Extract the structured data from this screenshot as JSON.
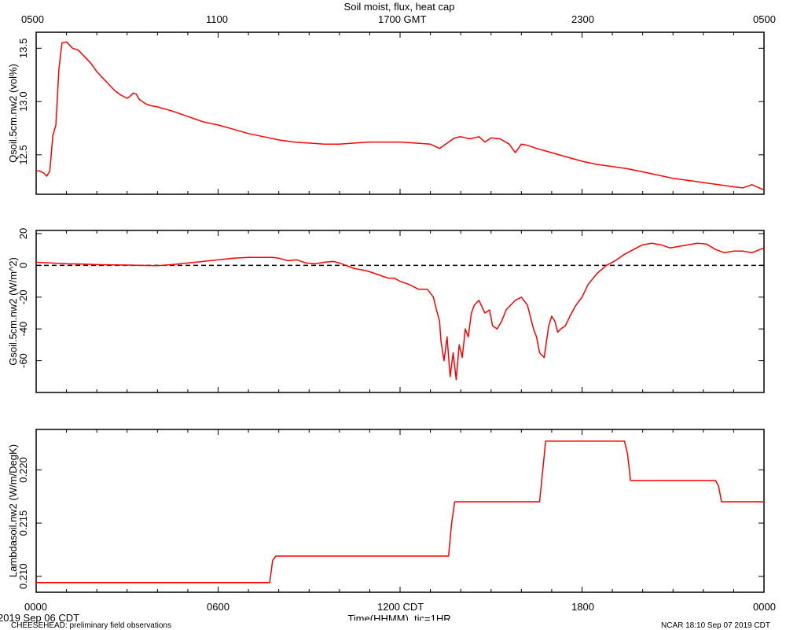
{
  "page": {
    "title": "Soil moist, flux, heat cap",
    "top_axis_ticks": [
      "0500",
      "1100",
      "1700 GMT",
      "2300",
      "0500"
    ],
    "bottom_axis_ticks": [
      "0000",
      "0600",
      "1200 CDT",
      "1800",
      "0000"
    ],
    "xlabel": "Time(HHMM), tic=1HR",
    "date_label": "2019 Sep 06 CDT",
    "footer_left": "CHEESEHEAD: preliminary field observations",
    "footer_right": "NCAR 18:10 Sep 07 2019 CDT",
    "line_color": "#ff0000",
    "zero_line_color": "#000000"
  },
  "chart_data": [
    {
      "type": "line",
      "ylabel": "Qsoil.5cm.nw2 (vol%)",
      "xlim": [
        0,
        24
      ],
      "ylim": [
        12.13,
        13.65
      ],
      "y_ticks": [
        "12.5",
        "13.0",
        "13.5"
      ],
      "y_tick_values": [
        12.5,
        13.0,
        13.5
      ],
      "grid": false,
      "x": [
        0.0,
        0.1,
        0.25,
        0.35,
        0.45,
        0.55,
        0.65,
        0.75,
        0.85,
        1.0,
        1.2,
        1.4,
        1.6,
        1.8,
        2.0,
        2.2,
        2.4,
        2.6,
        2.8,
        3.0,
        3.1,
        3.2,
        3.3,
        3.4,
        3.6,
        3.8,
        4.0,
        4.5,
        5.0,
        5.5,
        6.0,
        6.5,
        7.0,
        7.5,
        8.0,
        8.5,
        9.0,
        9.5,
        10.0,
        10.5,
        11.0,
        11.5,
        12.0,
        12.5,
        13.0,
        13.3,
        13.5,
        13.7,
        13.8,
        14.0,
        14.3,
        14.6,
        14.8,
        15.0,
        15.3,
        15.6,
        15.8,
        16.0,
        16.2,
        16.5,
        17.0,
        17.5,
        18.0,
        18.5,
        19.0,
        19.5,
        20.0,
        20.5,
        21.0,
        21.5,
        22.0,
        22.5,
        23.0,
        23.3,
        23.6,
        24.0
      ],
      "y": [
        12.35,
        12.35,
        12.33,
        12.3,
        12.35,
        12.68,
        12.78,
        13.3,
        13.55,
        13.56,
        13.5,
        13.48,
        13.42,
        13.36,
        13.28,
        13.22,
        13.16,
        13.1,
        13.06,
        13.03,
        13.05,
        13.08,
        13.07,
        13.02,
        12.98,
        12.96,
        12.95,
        12.91,
        12.86,
        12.81,
        12.78,
        12.74,
        12.7,
        12.67,
        12.64,
        12.62,
        12.61,
        12.6,
        12.6,
        12.61,
        12.62,
        12.62,
        12.62,
        12.61,
        12.6,
        12.56,
        12.6,
        12.64,
        12.66,
        12.67,
        12.65,
        12.67,
        12.62,
        12.66,
        12.65,
        12.6,
        12.52,
        12.6,
        12.59,
        12.56,
        12.52,
        12.48,
        12.44,
        12.41,
        12.39,
        12.37,
        12.34,
        12.31,
        12.28,
        12.26,
        12.24,
        12.22,
        12.2,
        12.19,
        12.22,
        12.17
      ]
    },
    {
      "type": "line",
      "ylabel": "Gsoil.5cm.nw2 (W/m^2)",
      "xlim": [
        0,
        24
      ],
      "ylim": [
        -80,
        22
      ],
      "y_ticks": [
        "-60",
        "-40",
        "-20",
        "0",
        "20"
      ],
      "y_tick_values": [
        -60,
        -40,
        -20,
        0,
        20
      ],
      "reference_line": 0,
      "grid": false,
      "x": [
        0.0,
        0.5,
        1.0,
        1.5,
        2.0,
        2.5,
        3.0,
        3.5,
        4.0,
        4.5,
        5.0,
        5.5,
        6.0,
        6.5,
        7.0,
        7.5,
        7.8,
        8.0,
        8.3,
        8.6,
        8.9,
        9.2,
        9.5,
        9.8,
        10.0,
        10.5,
        10.8,
        11.0,
        11.3,
        11.6,
        11.8,
        12.0,
        12.3,
        12.6,
        12.9,
        13.1,
        13.2,
        13.3,
        13.35,
        13.45,
        13.55,
        13.65,
        13.75,
        13.85,
        13.95,
        14.05,
        14.15,
        14.25,
        14.35,
        14.45,
        14.6,
        14.8,
        14.95,
        15.05,
        15.2,
        15.35,
        15.5,
        15.65,
        15.8,
        16.0,
        16.2,
        16.4,
        16.5,
        16.6,
        16.75,
        16.9,
        17.0,
        17.1,
        17.2,
        17.3,
        17.45,
        17.6,
        17.8,
        18.0,
        18.2,
        18.5,
        18.8,
        19.1,
        19.4,
        19.7,
        20.0,
        20.3,
        20.6,
        20.9,
        21.2,
        21.5,
        21.8,
        22.1,
        22.4,
        22.7,
        23.0,
        23.3,
        23.6,
        24.0
      ],
      "y": [
        2,
        1.5,
        1,
        0.8,
        0.5,
        0.3,
        0.2,
        0,
        -0.2,
        0.5,
        1.5,
        2.5,
        3.5,
        4.5,
        5,
        5,
        5,
        4.5,
        3,
        3.5,
        1.5,
        1,
        2,
        2.5,
        1.5,
        -2,
        -3,
        -4,
        -6,
        -8,
        -8,
        -10,
        -12,
        -15,
        -15,
        -20,
        -28,
        -35,
        -48,
        -60,
        -45,
        -70,
        -55,
        -72,
        -50,
        -58,
        -40,
        -45,
        -30,
        -25,
        -22,
        -30,
        -28,
        -38,
        -40,
        -35,
        -28,
        -25,
        -22,
        -20,
        -25,
        -40,
        -45,
        -55,
        -58,
        -38,
        -32,
        -35,
        -42,
        -40,
        -38,
        -32,
        -25,
        -20,
        -12,
        -5,
        0,
        3,
        7,
        10,
        13,
        14,
        13,
        11,
        12,
        13,
        14,
        13.5,
        10,
        8,
        9,
        9,
        8,
        11
      ]
    },
    {
      "type": "line",
      "ylabel": "Lambdasoil.nw2 (W/m/DegK)",
      "xlim": [
        0,
        24
      ],
      "ylim": [
        0.2085,
        0.2238
      ],
      "y_ticks": [
        "0.210",
        "0.215",
        "0.220"
      ],
      "y_tick_values": [
        0.21,
        0.215,
        0.22
      ],
      "grid": false,
      "x": [
        0.0,
        7.7,
        7.8,
        7.9,
        13.6,
        13.7,
        13.8,
        16.6,
        16.8,
        19.4,
        19.5,
        19.6,
        22.4,
        22.5,
        22.6,
        24.0
      ],
      "y": [
        0.2094,
        0.2094,
        0.2115,
        0.2119,
        0.2119,
        0.215,
        0.217,
        0.217,
        0.2227,
        0.2227,
        0.2215,
        0.219,
        0.219,
        0.2185,
        0.217,
        0.217
      ]
    }
  ]
}
